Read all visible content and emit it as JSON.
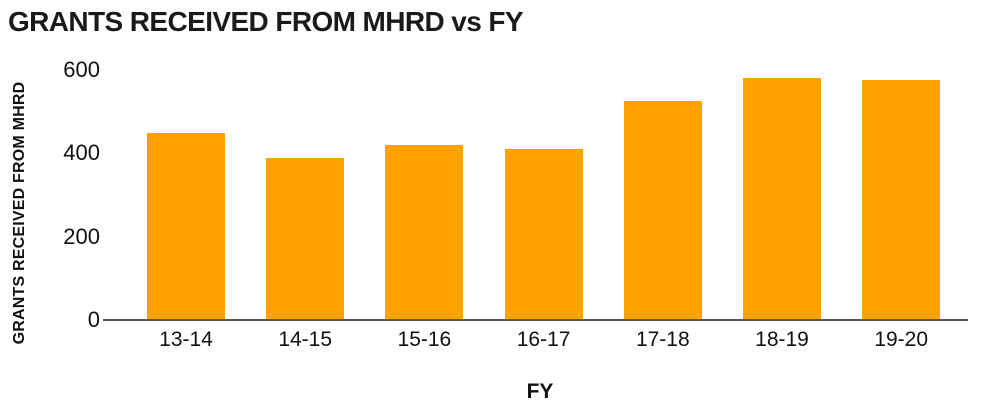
{
  "colors": {
    "bar": "#FFA200",
    "axis_line": "#58585A",
    "text": "#1A1A1A"
  },
  "chart_data": {
    "type": "bar",
    "title": "GRANTS RECEIVED FROM MHRD vs FY",
    "xlabel": "FY",
    "ylabel": "GRANTS RECEIVED FROM MHRD",
    "categories": [
      "13-14",
      "14-15",
      "15-16",
      "16-17",
      "17-18",
      "18-19",
      "19-20"
    ],
    "values": [
      450,
      390,
      420,
      410,
      525,
      580,
      575
    ],
    "ylim": [
      0,
      600
    ],
    "yticks": [
      0,
      200,
      400,
      600
    ],
    "grid": false,
    "legend": "none",
    "bar_color": "#FFA200",
    "background": "#FFFFFF"
  }
}
